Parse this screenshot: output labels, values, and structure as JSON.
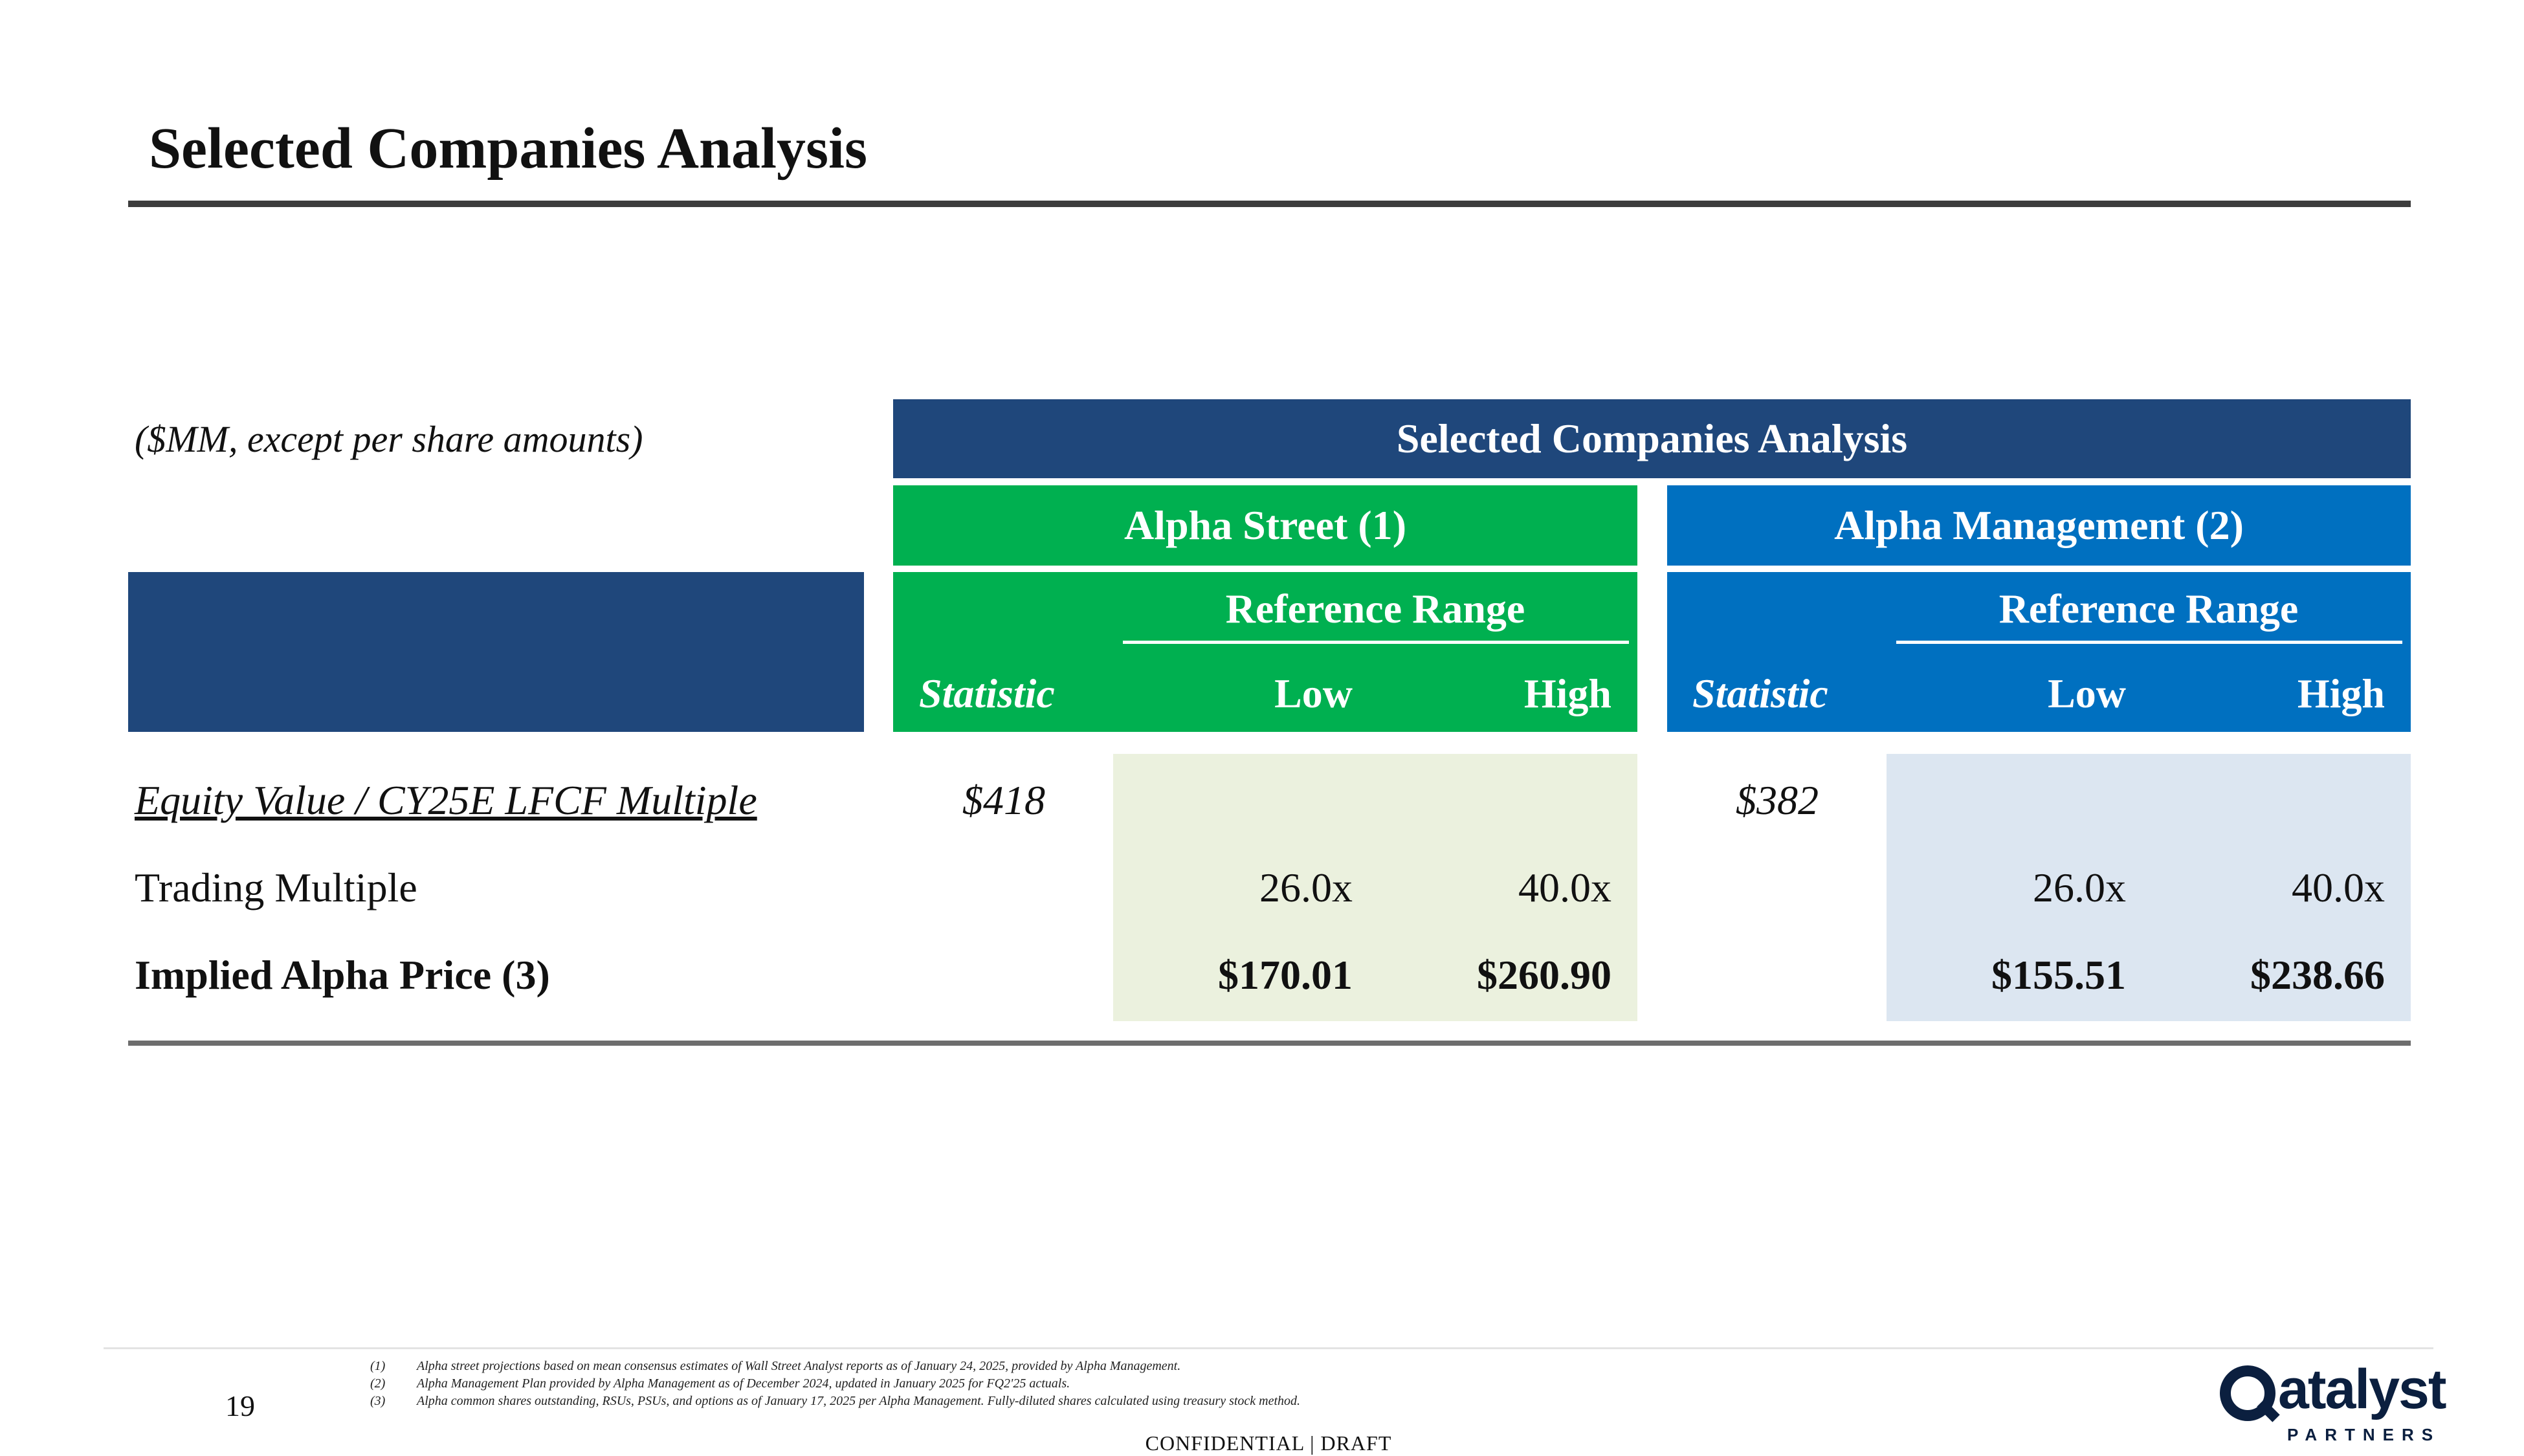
{
  "slide": {
    "title": "Selected Companies Analysis",
    "units_note": "($MM, except per share amounts)",
    "page_number": "19",
    "confidential": "CONFIDENTIAL | DRAFT"
  },
  "table": {
    "header": "Selected Companies Analysis",
    "groups": [
      {
        "title": "Alpha Street (1)",
        "color": "#00b050",
        "shade": "#ebf1de",
        "ref_range": "Reference Range",
        "statistic": "Statistic",
        "low": "Low",
        "high": "High"
      },
      {
        "title": "Alpha Management (2)",
        "color": "#0070c0",
        "shade": "#dce6f1",
        "ref_range": "Reference Range",
        "statistic": "Statistic",
        "low": "Low",
        "high": "High"
      }
    ],
    "rows": [
      {
        "label": "Equity Value / CY25E LFCF Multiple",
        "values": [
          "$418",
          "",
          "",
          "$382",
          "",
          ""
        ]
      },
      {
        "label": "Trading Multiple",
        "values": [
          "",
          "26.0x",
          "40.0x",
          "",
          "26.0x",
          "40.0x"
        ]
      },
      {
        "label": "Implied Alpha Price (3)",
        "values": [
          "",
          "$170.01",
          "$260.90",
          "",
          "$155.51",
          "$238.66"
        ]
      }
    ],
    "header_color": "#1f477b"
  },
  "footnotes": [
    {
      "num": "(1)",
      "text": "Alpha street projections based on mean consensus estimates of Wall Street Analyst reports as of January 24, 2025, provided by Alpha Management."
    },
    {
      "num": "(2)",
      "text": "Alpha Management Plan provided by Alpha Management as of December 2024, updated in January 2025 for FQ2'25 actuals."
    },
    {
      "num": "(3)",
      "text": "Alpha common shares outstanding, RSUs, PSUs, and options as of January 17, 2025 per Alpha Management. Fully-diluted shares calculated using treasury stock method."
    }
  ],
  "logo": {
    "word": "atalyst",
    "sub": "PARTNERS",
    "icon": "q-ring-logo-icon"
  }
}
